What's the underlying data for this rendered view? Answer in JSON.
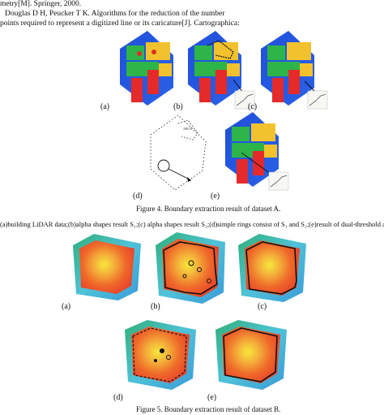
{
  "references": {
    "line1": "metry[M]. Springer, 2000.",
    "line2": "Douglas D H, Peucker T K. Algorithms for the reduction of the number",
    "line3": "points required to represent a digitized line or its caricature[J]. Cartographica:"
  },
  "figure4": {
    "labels": [
      "(a)",
      "(b)",
      "(c)",
      "(d)",
      "(e)"
    ],
    "caption": "Figure 4.   Boundary extraction result of dataset A.",
    "description": "(a)building LiDAR data;(b)alpha shapes result S₁;(c) alpha shapes result S₂;(d)simple rings consist of S₁ and S₂;(e)result of  dual-threshold al"
  },
  "figure5": {
    "labels": [
      "(a)",
      "(b)",
      "(c)",
      "(d)",
      "(e)"
    ],
    "caption": "Figure 5.   Boundary extraction result of dataset B."
  }
}
